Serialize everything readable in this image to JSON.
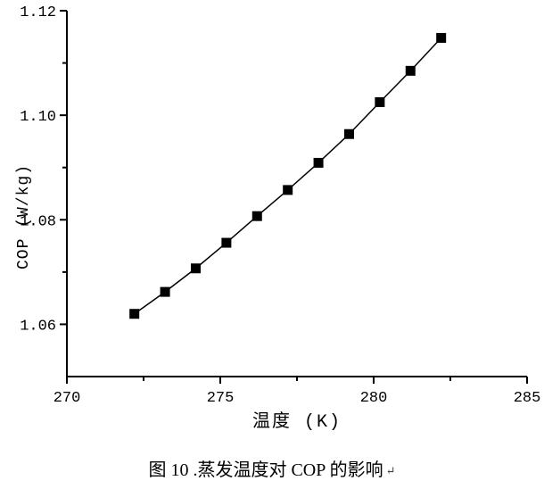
{
  "page": {
    "background": "#ffffff"
  },
  "chart_data": {
    "type": "line",
    "title": "",
    "xlabel": "温度 (K)",
    "ylabel": "COP (W/kg)",
    "xlim": [
      270,
      285
    ],
    "ylim": [
      1.05,
      1.12
    ],
    "x": [
      272.2,
      273.2,
      274.2,
      275.2,
      276.2,
      277.2,
      278.2,
      279.2,
      280.2,
      281.2,
      282.2
    ],
    "series": [
      {
        "name": "COP",
        "values": [
          1.062,
          1.0662,
          1.0707,
          1.0756,
          1.0807,
          1.0857,
          1.0909,
          1.0964,
          1.1025,
          1.1085,
          1.1148
        ]
      }
    ],
    "x_ticks": {
      "major": [
        270,
        275,
        280,
        285
      ],
      "major_labels": [
        "270",
        "275",
        "280",
        "285"
      ],
      "minor": [
        272.5,
        277.5,
        282.5
      ]
    },
    "y_ticks": {
      "major": [
        1.06,
        1.08,
        1.1,
        1.12
      ],
      "major_labels": [
        "1.06",
        "1.08",
        "1.10",
        "1.12"
      ],
      "minor": [
        1.07,
        1.09,
        1.11
      ]
    },
    "grid": false,
    "legend_position": "none",
    "marker": "filled-square",
    "colors": {
      "line": "#000000",
      "marker": "#000000",
      "axis": "#000000",
      "text": "#000000"
    }
  },
  "caption": {
    "text": "图 10 .蒸发温度对 COP 的影响",
    "return_mark": "↵"
  }
}
